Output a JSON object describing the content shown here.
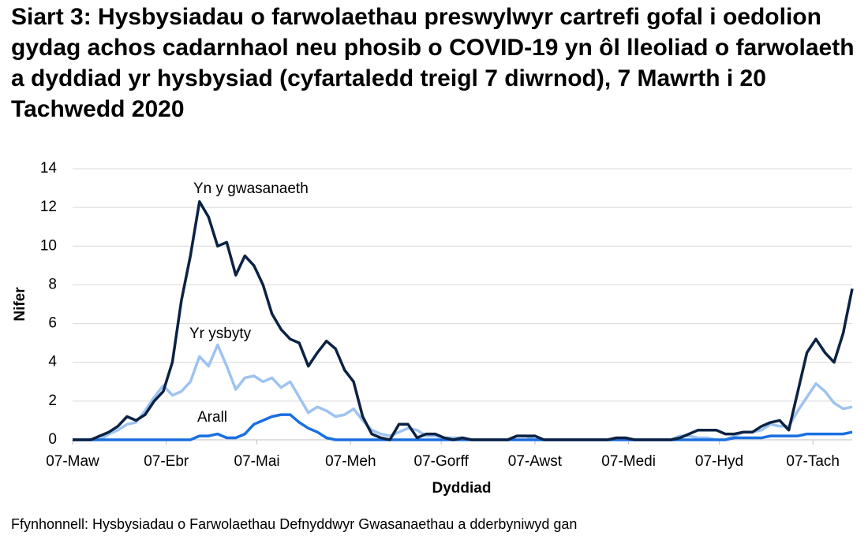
{
  "chart_data": {
    "type": "line",
    "title": "Siart 3: Hysbysiadau o farwolaethau preswylwyr cartrefi gofal i oedolion gydag achos cadarnhaol neu phosib o COVID-19 yn ôl lleoliad o farwolaeth a dyddiad yr hysbysiad (cyfartaledd treigl 7 diwrnod), 7 Mawrth i 20 Tachwedd 2020",
    "x_label": "Dyddiad",
    "y_label": "Nifer",
    "source": "Ffynhonnell: Hysbysiadau o Farwolaethau Defnyddwyr Gwasanaethau a dderbyniwyd gan",
    "x": [
      0,
      3,
      6,
      9,
      12,
      15,
      18,
      21,
      24,
      27,
      30,
      33,
      36,
      39,
      42,
      45,
      48,
      51,
      54,
      57,
      60,
      63,
      66,
      69,
      72,
      75,
      78,
      81,
      84,
      87,
      90,
      93,
      96,
      99,
      102,
      105,
      108,
      111,
      114,
      117,
      120,
      123,
      126,
      129,
      132,
      135,
      138,
      141,
      144,
      147,
      150,
      153,
      156,
      159,
      162,
      165,
      168,
      171,
      174,
      177,
      180,
      183,
      186,
      189,
      192,
      195,
      198,
      201,
      204,
      207,
      210,
      213,
      216,
      219,
      222,
      225,
      228,
      231,
      234,
      237,
      240,
      243,
      246,
      249,
      252,
      255,
      258
    ],
    "xlim": [
      0,
      258
    ],
    "xticks": [
      {
        "value": 0,
        "label": "07-Maw"
      },
      {
        "value": 31,
        "label": "07-Ebr"
      },
      {
        "value": 61,
        "label": "07-Mai"
      },
      {
        "value": 92,
        "label": "07-Meh"
      },
      {
        "value": 122,
        "label": "07-Gorff"
      },
      {
        "value": 153,
        "label": "07-Awst"
      },
      {
        "value": 184,
        "label": "07-Medi"
      },
      {
        "value": 214,
        "label": "07-Hyd"
      },
      {
        "value": 245,
        "label": "07-Tach"
      }
    ],
    "ylim": [
      0,
      14
    ],
    "yticks": [
      0,
      2,
      4,
      6,
      8,
      10,
      12,
      14
    ],
    "grid": true,
    "series": [
      {
        "name": "Yn y gwasanaeth",
        "color": "#0b2244",
        "values": [
          0,
          0,
          0,
          0.2,
          0.4,
          0.7,
          1.2,
          1.0,
          1.3,
          2.0,
          2.5,
          4.0,
          7.2,
          9.5,
          12.3,
          11.5,
          10.0,
          10.2,
          8.5,
          9.5,
          9.0,
          8.0,
          6.5,
          5.7,
          5.2,
          5.0,
          3.8,
          4.5,
          5.1,
          4.7,
          3.6,
          3.0,
          1.2,
          0.3,
          0.1,
          0,
          0.8,
          0.8,
          0.1,
          0.3,
          0.3,
          0.1,
          0,
          0.1,
          0,
          0,
          0,
          0,
          0,
          0.2,
          0.2,
          0.2,
          0,
          0,
          0,
          0,
          0,
          0,
          0,
          0,
          0.1,
          0.1,
          0,
          0,
          0,
          0,
          0,
          0.1,
          0.3,
          0.5,
          0.5,
          0.5,
          0.3,
          0.3,
          0.4,
          0.4,
          0.7,
          0.9,
          1.0,
          0.5,
          2.5,
          4.5,
          5.2,
          4.5,
          4.0,
          5.5,
          7.8
        ]
      },
      {
        "name": "Yr ysbyty",
        "color": "#9dc3f0",
        "values": [
          0,
          0,
          0,
          0,
          0.3,
          0.5,
          0.8,
          0.9,
          1.5,
          2.2,
          2.8,
          2.3,
          2.5,
          3.0,
          4.3,
          3.8,
          4.9,
          3.8,
          2.6,
          3.2,
          3.3,
          3.0,
          3.2,
          2.7,
          3.0,
          2.2,
          1.4,
          1.7,
          1.5,
          1.2,
          1.3,
          1.6,
          1.0,
          0.5,
          0.3,
          0.2,
          0.4,
          0.6,
          0.5,
          0.2,
          0.2,
          0.1,
          0.1,
          0.1,
          0,
          0,
          0,
          0,
          0,
          0.2,
          0.2,
          0,
          0,
          0,
          0,
          0,
          0,
          0,
          0,
          0,
          0,
          0,
          0,
          0,
          0,
          0,
          0,
          0.2,
          0.2,
          0.1,
          0.1,
          0,
          0,
          0.2,
          0.4,
          0.4,
          0.5,
          0.8,
          0.7,
          0.7,
          1.5,
          2.2,
          2.9,
          2.5,
          1.9,
          1.6,
          1.7
        ]
      },
      {
        "name": "Arall",
        "color": "#1a6fe0",
        "values": [
          0,
          0,
          0,
          0,
          0,
          0,
          0,
          0,
          0,
          0,
          0,
          0,
          0,
          0,
          0.2,
          0.2,
          0.3,
          0.1,
          0.1,
          0.3,
          0.8,
          1.0,
          1.2,
          1.3,
          1.3,
          0.9,
          0.6,
          0.4,
          0.1,
          0,
          0,
          0,
          0,
          0,
          0,
          0,
          0,
          0,
          0,
          0,
          0,
          0,
          0,
          0,
          0,
          0,
          0,
          0,
          0,
          0,
          0,
          0,
          0,
          0,
          0,
          0,
          0,
          0,
          0,
          0,
          0,
          0,
          0,
          0,
          0,
          0,
          0,
          0,
          0,
          0,
          0,
          0,
          0,
          0.1,
          0.1,
          0.1,
          0.1,
          0.2,
          0.2,
          0.2,
          0.2,
          0.3,
          0.3,
          0.3,
          0.3,
          0.3,
          0.4
        ]
      }
    ]
  }
}
